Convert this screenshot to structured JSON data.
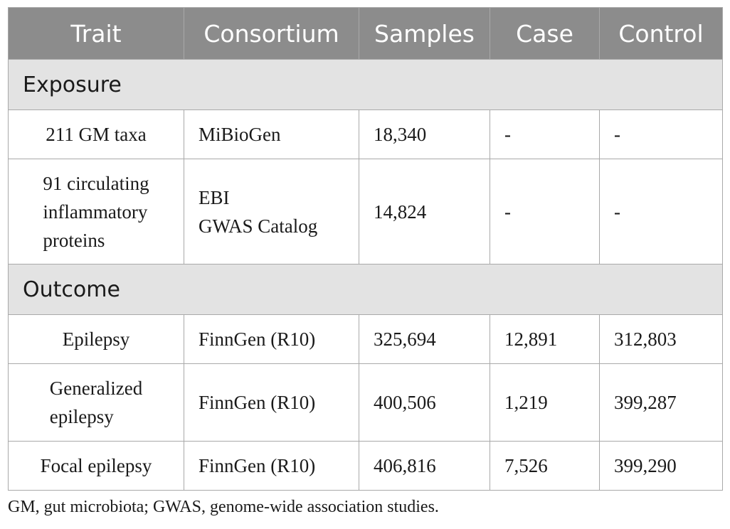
{
  "table": {
    "headers": [
      "Trait",
      "Consortium",
      "Samples",
      "Case",
      "Control"
    ],
    "sections": [
      {
        "label": "Exposure",
        "rows": [
          {
            "trait": "211 GM taxa",
            "consortium": "MiBioGen",
            "samples": "18,340",
            "case": "-",
            "control": "-"
          },
          {
            "trait": "91 circulating\ninflammatory\nproteins",
            "consortium": "EBI\nGWAS Catalog",
            "samples": "14,824",
            "case": "-",
            "control": "-"
          }
        ]
      },
      {
        "label": "Outcome",
        "rows": [
          {
            "trait": "Epilepsy",
            "consortium": "FinnGen (R10)",
            "samples": "325,694",
            "case": "12,891",
            "control": "312,803"
          },
          {
            "trait": "Generalized\nepilepsy",
            "consortium": "FinnGen (R10)",
            "samples": "400,506",
            "case": "1,219",
            "control": "399,287"
          },
          {
            "trait": "Focal epilepsy",
            "consortium": "FinnGen (R10)",
            "samples": "406,816",
            "case": "7,526",
            "control": "399,290"
          }
        ]
      }
    ]
  },
  "footnote": "GM, gut microbiota; GWAS, genome-wide association studies."
}
